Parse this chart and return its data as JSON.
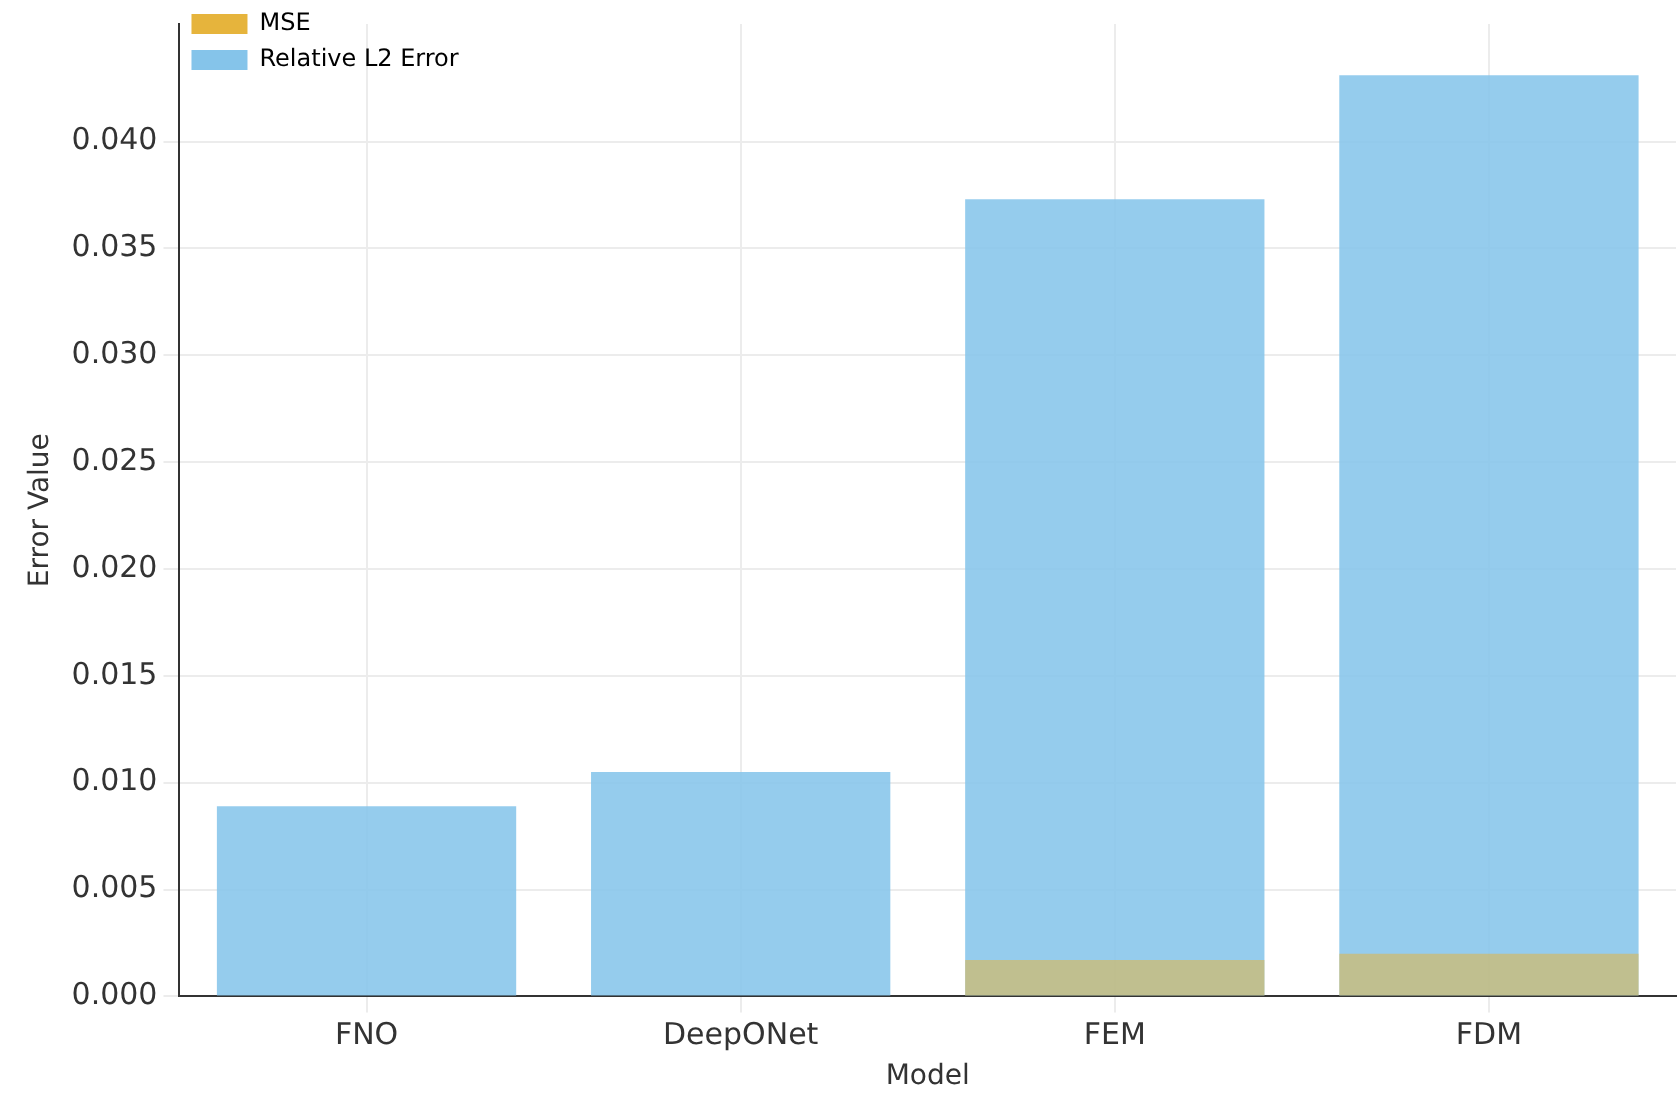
{
  "chart_data": {
    "type": "bar",
    "xlabel": "Model",
    "ylabel": "Error Value",
    "categories": [
      "FNO",
      "DeepONet",
      "FEM",
      "FDM"
    ],
    "series": [
      {
        "name": "MSE",
        "color": "#e6b43c",
        "values": [
          null,
          null,
          0.0017,
          0.002
        ]
      },
      {
        "name": "Relative L2 Error",
        "color": "#85c4ea",
        "values": [
          0.0089,
          0.0105,
          0.0373,
          0.0431
        ]
      }
    ],
    "ylim": [
      0,
      0.0455
    ],
    "yticks": [
      {
        "value": 0,
        "label": "0.000"
      },
      {
        "value": 0.005,
        "label": "0.005"
      },
      {
        "value": 0.01,
        "label": "0.010"
      },
      {
        "value": 0.015,
        "label": "0.015"
      },
      {
        "value": 0.02,
        "label": "0.020"
      },
      {
        "value": 0.025,
        "label": "0.025"
      },
      {
        "value": 0.03,
        "label": "0.030"
      },
      {
        "value": 0.035,
        "label": "0.035"
      },
      {
        "value": 0.04,
        "label": "0.040"
      }
    ],
    "grid": true,
    "legend": "top left"
  }
}
